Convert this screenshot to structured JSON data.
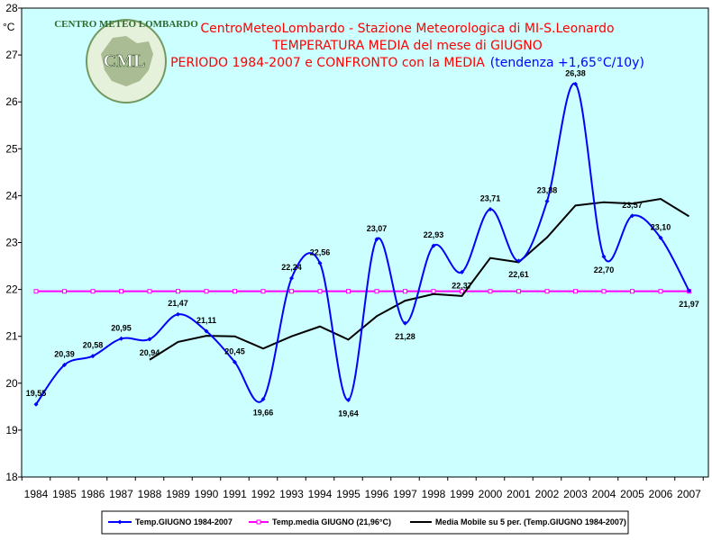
{
  "chart_data": {
    "type": "line",
    "title_lines": [
      "CentroMeteoLombardo - Stazione Meteorologica di MI-S.Leonardo",
      "TEMPERATURA MEDIA del mese di GIUGNO"
    ],
    "title_line3": "PERIODO 1984-2007 e CONFRONTO con la MEDIA",
    "title_trend": "(tendenza +1,65°C/10y)",
    "ylabel": "°C",
    "ylim": [
      18,
      28
    ],
    "yticks": [
      "18",
      "19",
      "20",
      "21",
      "22",
      "23",
      "24",
      "25",
      "26",
      "27",
      "28"
    ],
    "x": [
      "1984",
      "1985",
      "1986",
      "1987",
      "1988",
      "1989",
      "1990",
      "1991",
      "1992",
      "1993",
      "1994",
      "1995",
      "1996",
      "1997",
      "1998",
      "1999",
      "2000",
      "2001",
      "2002",
      "2003",
      "2004",
      "2005",
      "2006",
      "2007"
    ],
    "series": [
      {
        "name": "Temp.GIUGNO 1984-2007",
        "color": "#0000ff",
        "values": [
          19.55,
          20.39,
          20.58,
          20.95,
          20.94,
          21.47,
          21.11,
          20.45,
          19.66,
          22.24,
          22.56,
          19.64,
          23.07,
          21.28,
          22.93,
          22.37,
          23.71,
          22.61,
          23.88,
          26.38,
          22.7,
          23.57,
          23.1,
          21.97
        ],
        "labels": [
          "19,55",
          "20,39",
          "20,58",
          "20,95",
          "20,94",
          "21,47",
          "21,11",
          "20,45",
          "19,66",
          "22,24",
          "22,56",
          "19,64",
          "23,07",
          "21,28",
          "22,93",
          "22,37",
          "23,71",
          "22,61",
          "23,88",
          "26,38",
          "22,70",
          "23,57",
          "23,10",
          "21,97"
        ]
      },
      {
        "name": "Temp.media GIUGNO (21,96°C)",
        "color": "#ff00ff",
        "values": [
          21.96,
          21.96,
          21.96,
          21.96,
          21.96,
          21.96,
          21.96,
          21.96,
          21.96,
          21.96,
          21.96,
          21.96,
          21.96,
          21.96,
          21.96,
          21.96,
          21.96,
          21.96,
          21.96,
          21.96,
          21.96,
          21.96,
          21.96,
          21.96
        ]
      },
      {
        "name": "Media Mobile su 5 per. (Temp.GIUGNO 1984-2007)",
        "color": "#000000",
        "values": [
          null,
          null,
          null,
          null,
          20.5,
          20.88,
          21.01,
          21.0,
          20.74,
          21.0,
          21.21,
          20.93,
          21.43,
          21.76,
          21.9,
          21.86,
          22.67,
          22.58,
          23.11,
          23.79,
          23.86,
          23.83,
          23.93,
          23.56
        ]
      }
    ],
    "colors": {
      "plot_bg": "#ccffff",
      "title_red": "#ff0000",
      "title_blue": "#0000ff"
    },
    "logo": {
      "ring_text": "CENTRO METEO LOMBARDO",
      "center_text": "CML"
    },
    "grid": false,
    "legend_position": "bottom"
  }
}
